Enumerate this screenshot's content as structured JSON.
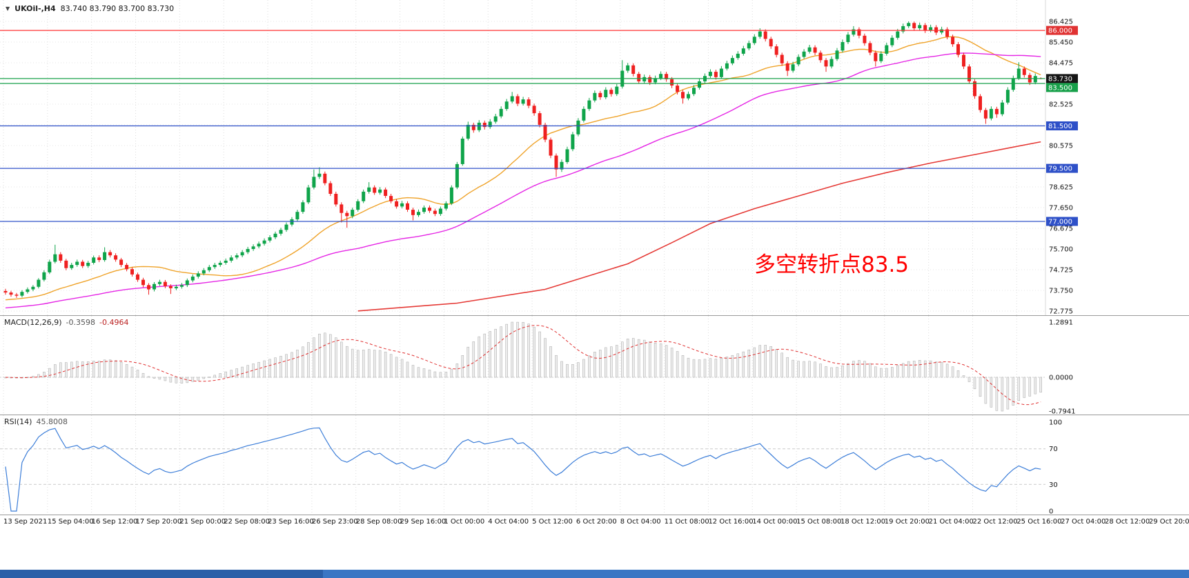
{
  "header": {
    "marker": "▼",
    "symbol_period": "UKOil-,H4",
    "ohlc": "83.740 83.790 83.700 83.730"
  },
  "annotation": {
    "text": "多空转折点83.5",
    "color": "#ff0000"
  },
  "colors": {
    "bg": "#ffffff",
    "up": "#0fa44a",
    "down": "#ef2020",
    "grid": "#dcdcdc",
    "ma_fast": "#efa32a",
    "ma_mid": "#e526e5",
    "ma_slow": "#e53935",
    "macd_hist_fill": "#ececec",
    "macd_hist_stroke": "#a8a8a8",
    "macd_signal": "#e03131",
    "rsi_line": "#3b7dd8",
    "scrollbar": "#3a76c4",
    "scrollbar_thumb": "#2a5fa8"
  },
  "chart_data": {
    "type": "candlestick",
    "symbol": "UKOil-",
    "timeframe": "H4",
    "last_bar": {
      "open": 83.74,
      "high": 83.79,
      "low": 83.7,
      "close": 83.73
    },
    "price_axis": {
      "max": 86.425,
      "min": 72.775,
      "ticks": [
        "86.425",
        "85.450",
        "84.475",
        "82.525",
        "80.575",
        "78.625",
        "77.650",
        "76.675",
        "75.700",
        "74.725",
        "73.750",
        "72.775"
      ],
      "grid_extra": [
        83.5,
        81.55,
        79.6
      ]
    },
    "levels": [
      {
        "value": 86.0,
        "label": "86.000",
        "line": "#ff3030",
        "badge": "#e03232"
      },
      {
        "value": 83.73,
        "label": "83.730",
        "line": "#18a04a",
        "badge": "#151515"
      },
      {
        "value": 83.5,
        "label": "83.500",
        "line": "#18a04a",
        "badge": "#18a04a"
      },
      {
        "value": 81.5,
        "label": "81.500",
        "line": "#2e50c8",
        "badge": "#2e50c8"
      },
      {
        "value": 79.5,
        "label": "79.500",
        "line": "#2e50c8",
        "badge": "#2e50c8"
      },
      {
        "value": 77.0,
        "label": "77.000",
        "line": "#2e50c8",
        "badge": "#2e50c8"
      }
    ],
    "time_labels": [
      "13 Sep 2021",
      "15 Sep 04:00",
      "16 Sep 12:00",
      "17 Sep 20:00",
      "21 Sep 00:00",
      "22 Sep 08:00",
      "23 Sep 16:00",
      "26 Sep 23:00",
      "28 Sep 08:00",
      "29 Sep 16:00",
      "1 Oct 00:00",
      "4 Oct 04:00",
      "5 Oct 12:00",
      "6 Oct 20:00",
      "8 Oct 04:00",
      "11 Oct 08:00",
      "12 Oct 16:00",
      "14 Oct 00:00",
      "15 Oct 08:00",
      "18 Oct 12:00",
      "19 Oct 20:00",
      "21 Oct 04:00",
      "22 Oct 12:00",
      "25 Oct 16:00",
      "27 Oct 04:00",
      "28 Oct 12:00",
      "29 Oct 20:00"
    ],
    "ma_fast_period": 21,
    "ma_mid_period": 55,
    "ma_seed": {
      "count": 55,
      "start": 72.3,
      "end": 73.5
    },
    "ma_slow_anchors": [
      [
        64,
        72.78
      ],
      [
        82,
        73.15
      ],
      [
        98,
        73.8
      ],
      [
        113,
        75.0
      ],
      [
        121,
        76.0
      ],
      [
        128,
        76.9
      ],
      [
        136,
        77.6
      ],
      [
        144,
        78.2
      ],
      [
        152,
        78.8
      ],
      [
        160,
        79.3
      ],
      [
        168,
        79.75
      ],
      [
        176,
        80.15
      ],
      [
        182,
        80.45
      ],
      [
        188,
        80.75
      ]
    ],
    "candles": [
      [
        73.72,
        73.82,
        73.55,
        73.65
      ],
      [
        73.65,
        73.73,
        73.45,
        73.55
      ],
      [
        73.55,
        73.63,
        73.4,
        73.5
      ],
      [
        73.5,
        73.76,
        73.42,
        73.68
      ],
      [
        73.68,
        73.89,
        73.6,
        73.8
      ],
      [
        73.8,
        74.0,
        73.71,
        73.92
      ],
      [
        73.92,
        74.33,
        73.84,
        74.25
      ],
      [
        74.25,
        74.7,
        74.17,
        74.6
      ],
      [
        74.6,
        75.2,
        74.52,
        75.1
      ],
      [
        75.1,
        75.9,
        75.02,
        75.45
      ],
      [
        75.45,
        75.55,
        75.05,
        75.15
      ],
      [
        75.15,
        75.24,
        74.7,
        74.8
      ],
      [
        74.8,
        75.05,
        74.72,
        74.95
      ],
      [
        74.95,
        75.2,
        74.86,
        75.1
      ],
      [
        75.1,
        75.19,
        74.8,
        74.9
      ],
      [
        74.9,
        75.14,
        74.81,
        75.05
      ],
      [
        75.05,
        75.39,
        74.97,
        75.3
      ],
      [
        75.3,
        75.4,
        75.08,
        75.18
      ],
      [
        75.18,
        75.78,
        75.1,
        75.55
      ],
      [
        75.55,
        75.65,
        75.3,
        75.4
      ],
      [
        75.4,
        75.5,
        75.1,
        75.2
      ],
      [
        75.2,
        75.28,
        74.85,
        74.95
      ],
      [
        74.95,
        75.04,
        74.65,
        74.75
      ],
      [
        74.75,
        74.84,
        74.4,
        74.5
      ],
      [
        74.5,
        74.59,
        74.15,
        74.25
      ],
      [
        74.25,
        74.34,
        73.9,
        74.0
      ],
      [
        74.0,
        74.09,
        73.55,
        73.8
      ],
      [
        73.8,
        74.14,
        73.7,
        74.05
      ],
      [
        74.05,
        74.25,
        73.96,
        74.15
      ],
      [
        74.15,
        74.24,
        73.85,
        73.95
      ],
      [
        73.95,
        74.04,
        73.58,
        73.85
      ],
      [
        73.85,
        74.02,
        73.76,
        73.92
      ],
      [
        73.92,
        74.1,
        73.83,
        74.0
      ],
      [
        74.0,
        74.31,
        73.91,
        74.22
      ],
      [
        74.22,
        74.5,
        74.13,
        74.4
      ],
      [
        74.4,
        74.65,
        74.31,
        74.55
      ],
      [
        74.55,
        74.8,
        74.46,
        74.7
      ],
      [
        74.7,
        74.95,
        74.61,
        74.85
      ],
      [
        74.85,
        75.05,
        74.76,
        74.95
      ],
      [
        74.95,
        75.15,
        74.86,
        75.05
      ],
      [
        75.05,
        75.25,
        74.96,
        75.15
      ],
      [
        75.15,
        75.4,
        75.06,
        75.3
      ],
      [
        75.3,
        75.5,
        75.21,
        75.4
      ],
      [
        75.4,
        75.65,
        75.31,
        75.55
      ],
      [
        75.55,
        75.8,
        75.46,
        75.7
      ],
      [
        75.7,
        75.92,
        75.61,
        75.82
      ],
      [
        75.82,
        76.05,
        75.73,
        75.95
      ],
      [
        75.95,
        76.2,
        75.86,
        76.1
      ],
      [
        76.1,
        76.35,
        76.01,
        76.25
      ],
      [
        76.25,
        76.52,
        76.16,
        76.42
      ],
      [
        76.42,
        76.7,
        76.33,
        76.6
      ],
      [
        76.6,
        76.95,
        76.51,
        76.85
      ],
      [
        76.85,
        77.2,
        76.76,
        77.1
      ],
      [
        77.1,
        77.55,
        77.01,
        77.45
      ],
      [
        77.45,
        78.0,
        77.36,
        77.9
      ],
      [
        77.9,
        78.72,
        77.82,
        78.6
      ],
      [
        78.6,
        79.45,
        78.51,
        79.1
      ],
      [
        79.1,
        79.55,
        79.0,
        79.25
      ],
      [
        79.25,
        79.35,
        78.7,
        78.8
      ],
      [
        78.8,
        78.9,
        78.2,
        78.3
      ],
      [
        78.3,
        78.4,
        77.7,
        77.8
      ],
      [
        77.8,
        77.9,
        76.95,
        77.4
      ],
      [
        77.4,
        77.5,
        76.7,
        77.25
      ],
      [
        77.25,
        77.65,
        77.15,
        77.55
      ],
      [
        77.55,
        78.05,
        77.46,
        77.95
      ],
      [
        77.95,
        78.5,
        77.86,
        78.4
      ],
      [
        78.4,
        78.85,
        78.31,
        78.6
      ],
      [
        78.6,
        78.7,
        78.25,
        78.35
      ],
      [
        78.35,
        78.62,
        78.26,
        78.5
      ],
      [
        78.5,
        78.6,
        78.1,
        78.2
      ],
      [
        78.2,
        78.3,
        77.85,
        77.95
      ],
      [
        77.95,
        78.05,
        77.6,
        77.7
      ],
      [
        77.7,
        77.97,
        77.61,
        77.85
      ],
      [
        77.85,
        77.95,
        77.45,
        77.55
      ],
      [
        77.55,
        77.65,
        77.05,
        77.3
      ],
      [
        77.3,
        77.56,
        77.21,
        77.45
      ],
      [
        77.45,
        77.75,
        77.36,
        77.65
      ],
      [
        77.65,
        77.75,
        77.4,
        77.5
      ],
      [
        77.5,
        77.6,
        77.25,
        77.35
      ],
      [
        77.35,
        77.7,
        77.26,
        77.6
      ],
      [
        77.6,
        77.95,
        77.51,
        77.85
      ],
      [
        77.85,
        78.7,
        77.77,
        78.6
      ],
      [
        78.6,
        79.8,
        78.52,
        79.7
      ],
      [
        79.7,
        81.0,
        79.62,
        80.9
      ],
      [
        80.9,
        81.7,
        80.82,
        81.55
      ],
      [
        81.55,
        81.65,
        81.18,
        81.3
      ],
      [
        81.3,
        81.77,
        81.21,
        81.65
      ],
      [
        81.65,
        81.75,
        81.33,
        81.45
      ],
      [
        81.45,
        81.82,
        81.36,
        81.7
      ],
      [
        81.7,
        82.07,
        81.61,
        81.95
      ],
      [
        81.95,
        82.42,
        81.86,
        82.3
      ],
      [
        82.3,
        82.77,
        82.21,
        82.65
      ],
      [
        82.65,
        83.1,
        82.56,
        82.9
      ],
      [
        82.9,
        83.0,
        82.43,
        82.55
      ],
      [
        82.55,
        82.87,
        82.46,
        82.75
      ],
      [
        82.75,
        82.85,
        82.33,
        82.45
      ],
      [
        82.45,
        82.55,
        81.98,
        82.1
      ],
      [
        82.1,
        82.2,
        81.43,
        81.55
      ],
      [
        81.55,
        81.65,
        80.73,
        80.85
      ],
      [
        80.85,
        80.95,
        79.98,
        80.1
      ],
      [
        80.1,
        80.2,
        79.1,
        79.45
      ],
      [
        79.45,
        79.92,
        79.33,
        79.8
      ],
      [
        79.8,
        80.52,
        79.71,
        80.4
      ],
      [
        80.4,
        81.22,
        80.31,
        81.1
      ],
      [
        81.1,
        81.87,
        81.01,
        81.75
      ],
      [
        81.75,
        82.42,
        81.66,
        82.3
      ],
      [
        82.3,
        82.82,
        82.21,
        82.7
      ],
      [
        82.7,
        83.17,
        82.61,
        83.05
      ],
      [
        83.05,
        83.15,
        82.73,
        82.85
      ],
      [
        82.85,
        83.32,
        82.76,
        83.2
      ],
      [
        83.2,
        83.3,
        82.88,
        83.0
      ],
      [
        83.0,
        83.47,
        82.91,
        83.35
      ],
      [
        83.35,
        84.6,
        83.26,
        84.1
      ],
      [
        84.1,
        84.47,
        84.0,
        84.35
      ],
      [
        84.35,
        84.45,
        83.83,
        83.95
      ],
      [
        83.95,
        84.05,
        83.48,
        83.6
      ],
      [
        83.6,
        83.92,
        83.51,
        83.8
      ],
      [
        83.8,
        83.9,
        83.43,
        83.55
      ],
      [
        83.55,
        83.87,
        83.46,
        83.75
      ],
      [
        83.75,
        84.07,
        83.66,
        83.95
      ],
      [
        83.95,
        84.05,
        83.58,
        83.7
      ],
      [
        83.7,
        83.8,
        83.28,
        83.4
      ],
      [
        83.4,
        83.5,
        82.98,
        83.1
      ],
      [
        83.1,
        83.2,
        82.55,
        82.8
      ],
      [
        82.8,
        83.12,
        82.71,
        83.0
      ],
      [
        83.0,
        83.42,
        82.91,
        83.3
      ],
      [
        83.3,
        83.72,
        83.21,
        83.6
      ],
      [
        83.6,
        83.97,
        83.51,
        83.85
      ],
      [
        83.85,
        84.17,
        83.76,
        84.05
      ],
      [
        84.05,
        84.15,
        83.68,
        83.8
      ],
      [
        83.8,
        84.32,
        83.71,
        84.2
      ],
      [
        84.2,
        84.57,
        84.11,
        84.45
      ],
      [
        84.45,
        84.82,
        84.36,
        84.7
      ],
      [
        84.7,
        85.02,
        84.61,
        84.9
      ],
      [
        84.9,
        85.27,
        84.81,
        85.15
      ],
      [
        85.15,
        85.52,
        85.06,
        85.4
      ],
      [
        85.4,
        85.82,
        85.31,
        85.7
      ],
      [
        85.7,
        86.1,
        85.61,
        85.95
      ],
      [
        85.95,
        86.05,
        85.48,
        85.6
      ],
      [
        85.6,
        85.7,
        85.13,
        85.25
      ],
      [
        85.25,
        85.35,
        84.73,
        84.85
      ],
      [
        84.85,
        84.95,
        84.33,
        84.45
      ],
      [
        84.45,
        84.55,
        83.85,
        84.1
      ],
      [
        84.1,
        84.52,
        84.01,
        84.4
      ],
      [
        84.4,
        84.87,
        84.31,
        84.75
      ],
      [
        84.75,
        85.12,
        84.66,
        85.0
      ],
      [
        85.0,
        85.32,
        84.91,
        85.2
      ],
      [
        85.2,
        85.3,
        84.83,
        84.95
      ],
      [
        84.95,
        85.05,
        84.48,
        84.6
      ],
      [
        84.6,
        84.7,
        84.05,
        84.3
      ],
      [
        84.3,
        84.77,
        84.21,
        84.65
      ],
      [
        84.65,
        85.17,
        84.56,
        85.05
      ],
      [
        85.05,
        85.57,
        84.96,
        85.45
      ],
      [
        85.45,
        85.92,
        85.36,
        85.8
      ],
      [
        85.8,
        86.2,
        85.71,
        86.05
      ],
      [
        86.05,
        86.15,
        85.63,
        85.75
      ],
      [
        85.75,
        85.85,
        85.28,
        85.4
      ],
      [
        85.4,
        85.5,
        84.83,
        84.95
      ],
      [
        84.95,
        85.05,
        84.3,
        84.55
      ],
      [
        84.55,
        85.02,
        84.46,
        84.9
      ],
      [
        84.9,
        85.42,
        84.81,
        85.3
      ],
      [
        85.3,
        85.77,
        85.21,
        85.65
      ],
      [
        85.65,
        86.07,
        85.56,
        85.95
      ],
      [
        85.95,
        86.32,
        85.86,
        86.2
      ],
      [
        86.2,
        86.425,
        86.11,
        86.35
      ],
      [
        86.35,
        86.42,
        85.98,
        86.1
      ],
      [
        86.1,
        86.37,
        86.01,
        86.25
      ],
      [
        86.25,
        86.35,
        85.88,
        86.0
      ],
      [
        86.0,
        86.27,
        85.91,
        86.15
      ],
      [
        86.15,
        86.25,
        85.78,
        85.9
      ],
      [
        85.9,
        86.17,
        85.81,
        86.05
      ],
      [
        86.05,
        86.15,
        85.58,
        85.7
      ],
      [
        85.7,
        85.8,
        85.23,
        85.35
      ],
      [
        85.35,
        85.45,
        84.73,
        84.85
      ],
      [
        84.85,
        84.95,
        84.18,
        84.3
      ],
      [
        84.3,
        84.4,
        83.48,
        83.6
      ],
      [
        83.6,
        83.7,
        82.78,
        82.9
      ],
      [
        82.9,
        83.0,
        82.13,
        82.25
      ],
      [
        82.25,
        82.35,
        81.6,
        81.85
      ],
      [
        81.85,
        82.42,
        81.76,
        82.3
      ],
      [
        82.3,
        82.4,
        81.88,
        82.05
      ],
      [
        82.05,
        82.72,
        81.96,
        82.6
      ],
      [
        82.6,
        83.32,
        82.51,
        83.2
      ],
      [
        83.2,
        83.87,
        83.11,
        83.75
      ],
      [
        83.75,
        84.5,
        83.66,
        84.2
      ],
      [
        84.2,
        84.3,
        83.78,
        83.9
      ],
      [
        83.9,
        84.0,
        83.43,
        83.55
      ],
      [
        83.55,
        83.97,
        83.46,
        83.85
      ],
      [
        83.74,
        83.79,
        83.7,
        83.73
      ]
    ],
    "macd": {
      "name": "MACD(12,26,9)",
      "value_main": "-0.3598",
      "value_signal": "-0.4964",
      "params": [
        12,
        26,
        9
      ],
      "axis_labels": [
        "1.2891",
        "0.0000",
        "-0.7941"
      ]
    },
    "rsi": {
      "name": "RSI(14)",
      "value": "45.8008",
      "period": 14,
      "axis_labels": [
        "100",
        "70",
        "30",
        "0"
      ],
      "levels": [
        70,
        30
      ]
    }
  }
}
